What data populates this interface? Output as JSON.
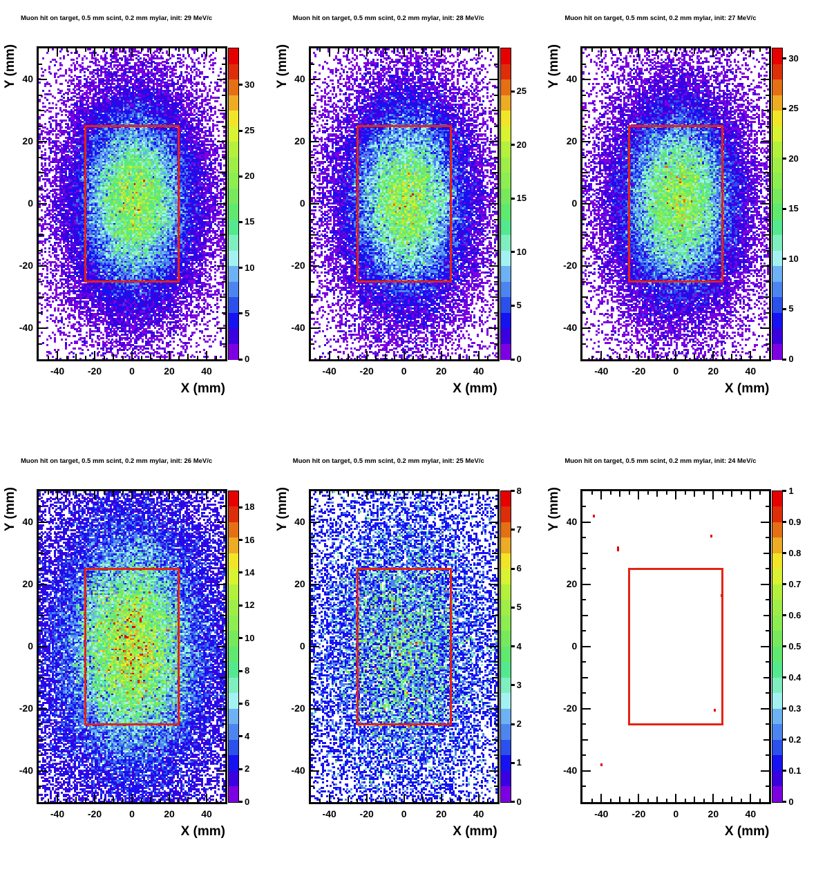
{
  "figure": {
    "background": "#ffffff",
    "grid": "off",
    "legend": "none"
  },
  "palette20_bottom_to_top": [
    "#7d00e3",
    "#3a00e0",
    "#1612f2",
    "#2b50ec",
    "#4d85f0",
    "#6cb2f4",
    "#a4f1f1",
    "#7fefc0",
    "#54e98e",
    "#5fe96e",
    "#77e95c",
    "#8cee50",
    "#9eee47",
    "#b3f13c",
    "#d9f231",
    "#f2e528",
    "#eeab24",
    "#e56f14",
    "#de2d09",
    "#e60000"
  ],
  "overlay_rect_color": "#e42313",
  "chart_data": [
    {
      "type": "heatmap",
      "title": "Muon hit on target, 0.5 mm scint, 0.2 mm mylar, init: 29 MeV/c",
      "xlabel": "X (mm)",
      "ylabel": "Y (mm)",
      "xlim": [
        -50,
        50
      ],
      "ylim": [
        -50,
        50
      ],
      "x_tick_labels": [
        "-40",
        "-20",
        "0",
        "20",
        "40"
      ],
      "y_tick_labels": [
        "40",
        "20",
        "0",
        "-20",
        "-40"
      ],
      "bin_size_mm": 1,
      "z_max": 34,
      "colorbar_ticks": [
        "0",
        "5",
        "10",
        "15",
        "20",
        "25",
        "30"
      ],
      "overlay_rect": {
        "x0": -25,
        "x1": 25,
        "y0": -25,
        "y1": 25
      },
      "distribution": {
        "kind": "gaussian_poisson",
        "center": [
          1.5,
          1
        ],
        "sigma": 16.5,
        "peak": 19,
        "halo_peak": 1.2,
        "halo_sigma": 30,
        "seed": 101
      }
    },
    {
      "type": "heatmap",
      "title": "Muon hit on target, 0.5 mm scint, 0.2 mm mylar, init: 28 MeV/c",
      "xlabel": "X (mm)",
      "ylabel": "Y (mm)",
      "xlim": [
        -50,
        50
      ],
      "ylim": [
        -50,
        50
      ],
      "x_tick_labels": [
        "-40",
        "-20",
        "0",
        "20",
        "40"
      ],
      "y_tick_labels": [
        "40",
        "20",
        "0",
        "-20",
        "-40"
      ],
      "bin_size_mm": 1,
      "z_max": 29,
      "colorbar_ticks": [
        "0",
        "5",
        "10",
        "15",
        "20",
        "25"
      ],
      "overlay_rect": {
        "x0": -25,
        "x1": 25,
        "y0": -25,
        "y1": 25
      },
      "distribution": {
        "kind": "gaussian_poisson",
        "center": [
          1.5,
          1
        ],
        "sigma": 16.5,
        "peak": 16,
        "halo_peak": 1.2,
        "halo_sigma": 30,
        "seed": 102
      }
    },
    {
      "type": "heatmap",
      "title": "Muon hit on target, 0.5 mm scint, 0.2 mm mylar, init: 27 MeV/c",
      "xlabel": "X (mm)",
      "ylabel": "Y (mm)",
      "xlim": [
        -50,
        50
      ],
      "ylim": [
        -50,
        50
      ],
      "x_tick_labels": [
        "-40",
        "-20",
        "0",
        "20",
        "40"
      ],
      "y_tick_labels": [
        "40",
        "20",
        "0",
        "-20",
        "-40"
      ],
      "bin_size_mm": 1,
      "z_max": 31,
      "colorbar_ticks": [
        "0",
        "5",
        "10",
        "15",
        "20",
        "25",
        "30"
      ],
      "overlay_rect": {
        "x0": -25,
        "x1": 25,
        "y0": -25,
        "y1": 25
      },
      "distribution": {
        "kind": "gaussian_poisson",
        "center": [
          1.5,
          1
        ],
        "sigma": 16.5,
        "peak": 17,
        "halo_peak": 1.2,
        "halo_sigma": 30,
        "seed": 103
      }
    },
    {
      "type": "heatmap",
      "title": "Muon hit on target, 0.5 mm scint, 0.2 mm mylar, init: 26 MeV/c",
      "xlabel": "X (mm)",
      "ylabel": "Y (mm)",
      "xlim": [
        -50,
        50
      ],
      "ylim": [
        -50,
        50
      ],
      "x_tick_labels": [
        "-40",
        "-20",
        "0",
        "20",
        "40"
      ],
      "y_tick_labels": [
        "40",
        "20",
        "0",
        "-20",
        "-40"
      ],
      "bin_size_mm": 1,
      "z_max": 19,
      "colorbar_ticks": [
        "0",
        "2",
        "4",
        "6",
        "8",
        "10",
        "12",
        "14",
        "16",
        "18"
      ],
      "overlay_rect": {
        "x0": -25,
        "x1": 25,
        "y0": -25,
        "y1": 25
      },
      "distribution": {
        "kind": "gaussian_poisson",
        "center": [
          0,
          0
        ],
        "sigma": 19,
        "peak": 11,
        "halo_peak": 2.0,
        "halo_sigma": 38,
        "seed": 104
      }
    },
    {
      "type": "heatmap",
      "title": "Muon hit on target, 0.5 mm scint, 0.2 mm mylar, init: 25 MeV/c",
      "xlabel": "X (mm)",
      "ylabel": "Y (mm)",
      "xlim": [
        -50,
        50
      ],
      "ylim": [
        -50,
        50
      ],
      "x_tick_labels": [
        "-40",
        "-20",
        "0",
        "20",
        "40"
      ],
      "y_tick_labels": [
        "40",
        "20",
        "0",
        "-20",
        "-40"
      ],
      "bin_size_mm": 1,
      "z_max": 8,
      "colorbar_ticks": [
        "0",
        "1",
        "2",
        "3",
        "4",
        "5",
        "6",
        "7",
        "8"
      ],
      "overlay_rect": {
        "x0": -25,
        "x1": 25,
        "y0": -25,
        "y1": 25
      },
      "distribution": {
        "kind": "gaussian_poisson",
        "center": [
          0,
          0
        ],
        "sigma": 23,
        "peak": 2.1,
        "halo_peak": 0.6,
        "halo_sigma": 45,
        "seed": 105
      }
    },
    {
      "type": "heatmap",
      "title": "Muon hit on target, 0.5 mm scint, 0.2 mm mylar, init: 24 MeV/c",
      "xlabel": "X (mm)",
      "ylabel": "Y (mm)",
      "xlim": [
        -50,
        50
      ],
      "ylim": [
        -50,
        50
      ],
      "x_tick_labels": [
        "-40",
        "-20",
        "0",
        "20",
        "40"
      ],
      "y_tick_labels": [
        "40",
        "20",
        "0",
        "-20",
        "-40"
      ],
      "bin_size_mm": 1,
      "z_max": 1,
      "colorbar_ticks": [
        "0",
        "0.1",
        "0.2",
        "0.3",
        "0.4",
        "0.5",
        "0.6",
        "0.7",
        "0.8",
        "0.9",
        "1"
      ],
      "overlay_rect": {
        "x0": -25,
        "x1": 25,
        "y0": -25,
        "y1": 25
      },
      "distribution": {
        "kind": "points",
        "value": 1,
        "points": [
          {
            "x": -44,
            "y": 42
          },
          {
            "x": 19,
            "y": 35.5
          },
          {
            "x": -31,
            "y": 31.5,
            "h": 2
          },
          {
            "x": 24.5,
            "y": 16.5
          },
          {
            "x": 21,
            "y": -20.5
          },
          {
            "x": -40,
            "y": -38
          }
        ]
      }
    }
  ]
}
